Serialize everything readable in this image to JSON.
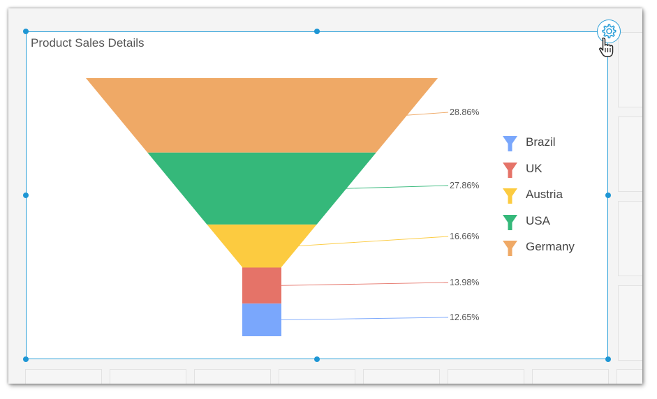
{
  "widget": {
    "title": "Product Sales Details",
    "settings_icon": "gear-icon",
    "cursor_icon": "hand-pointer-icon"
  },
  "colors": {
    "selection_border": "#2a9fd8",
    "Germany": "#efa966",
    "USA": "#35b87a",
    "Austria": "#fccb40",
    "UK": "#e57368",
    "Brazil": "#7aa7fc"
  },
  "chart_data": {
    "type": "funnel",
    "title": "Product Sales Details",
    "categories": [
      "Germany",
      "USA",
      "Austria",
      "UK",
      "Brazil"
    ],
    "values": [
      28.86,
      27.86,
      16.66,
      13.98,
      12.65
    ],
    "data_labels": [
      "28.86%",
      "27.86%",
      "16.66%",
      "13.98%",
      "12.65%"
    ],
    "legend": {
      "position": "right",
      "entries": [
        "Brazil",
        "UK",
        "Austria",
        "USA",
        "Germany"
      ]
    }
  }
}
